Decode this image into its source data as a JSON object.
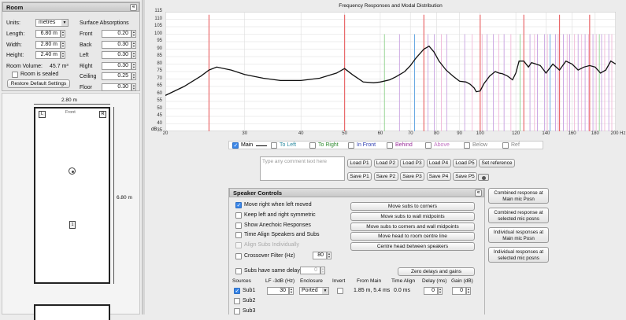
{
  "room": {
    "header": "Room",
    "units_label": "Units:",
    "units_value": "metres",
    "length_label": "Length:",
    "length_value": "6.80 m",
    "width_label": "Width:",
    "width_value": "2.80 m",
    "height_label": "Height:",
    "height_value": "2.40 m",
    "volume_label": "Room Volume:",
    "volume_value": "45.7 m³",
    "sealed_label": "Room is sealed",
    "restore_label": "Restore Default Settings",
    "absorptions_header": "Surface Absorptions",
    "absorptions": [
      {
        "label": "Front",
        "value": "0.20"
      },
      {
        "label": "Back",
        "value": "0.30"
      },
      {
        "label": "Left",
        "value": "0.30"
      },
      {
        "label": "Right",
        "value": "0.30"
      },
      {
        "label": "Ceiling",
        "value": "0.25"
      },
      {
        "label": "Floor",
        "value": "0.30"
      }
    ]
  },
  "plan": {
    "width_dim": "2.80 m",
    "length_dim": "6.80 m",
    "front_label": "Front",
    "left_marker": "L",
    "right_marker": "R",
    "sub_marker": "1"
  },
  "chart_data": {
    "type": "line",
    "title": "Frequency Responses and Modal Distribution",
    "x_scale": "log",
    "xlim": [
      20,
      200
    ],
    "x_ticks": [
      "20",
      "30",
      "40",
      "50",
      "60",
      "70",
      "80",
      "90",
      "100",
      "120",
      "140",
      "160",
      "180",
      "200 Hz"
    ],
    "ylim": [
      35,
      115
    ],
    "y_ticks": [
      "115",
      "110",
      "105",
      "100",
      "95",
      "90",
      "85",
      "80",
      "75",
      "70",
      "65",
      "60",
      "55",
      "50",
      "45",
      "40",
      "35"
    ],
    "y_unit": "dB",
    "grid": true,
    "series": [
      {
        "name": "Main",
        "x": [
          20,
          22,
          24,
          25,
          26,
          28,
          30,
          33,
          36,
          40,
          44,
          48,
          50,
          52,
          55,
          58,
          60,
          63,
          65,
          68,
          70,
          72,
          75,
          77,
          79,
          81,
          84,
          87,
          90,
          93,
          95,
          97,
          98,
          100,
          102,
          105,
          108,
          110,
          112,
          115,
          118,
          120,
          122,
          125,
          128,
          130,
          133,
          136,
          140,
          145,
          150,
          155,
          160,
          165,
          170,
          175,
          180,
          185,
          190,
          195,
          200
        ],
        "y": [
          59,
          65,
          72,
          76,
          78,
          76,
          73,
          70.5,
          69,
          69,
          70.5,
          74,
          77,
          73,
          68,
          67.5,
          68,
          69.5,
          71.5,
          75,
          79,
          84,
          90,
          92,
          88,
          82,
          76,
          72,
          68.5,
          68,
          66.5,
          64,
          61.5,
          62,
          67,
          72,
          75,
          74,
          73.5,
          72,
          69.5,
          74,
          82,
          82,
          78,
          81,
          80,
          79,
          74,
          80,
          76,
          82,
          80,
          76,
          78,
          79,
          78,
          74,
          76,
          82,
          80
        ]
      }
    ],
    "modes": {
      "axial": [
        25,
        50,
        75,
        100,
        125,
        150,
        175
      ],
      "width_axial": [
        61.3,
        122.6,
        183.9
      ],
      "height_axial": [
        71.5,
        143,
        214.5
      ],
      "tangential": [
        66.2,
        76.6,
        79.1,
        84.3,
        92.4,
        103.6,
        107,
        113,
        129,
        134,
        139,
        147,
        153,
        158,
        165,
        171,
        178,
        186,
        193
      ],
      "oblique": [
        82,
        96,
        101,
        110,
        117,
        132,
        141,
        149,
        156,
        162,
        168,
        174,
        181,
        189,
        196
      ]
    },
    "mode_colors": {
      "axial": "#e9686a",
      "width_axial": "#8ed18c",
      "height_axial": "#5aa0e0",
      "tangential": "#c8a0e0",
      "oblique": "#f0b8d8"
    },
    "legend": [
      {
        "name": "Main",
        "color": "#000000",
        "checked": true
      },
      {
        "name": "To Left",
        "color": "#2a8aa0",
        "checked": false
      },
      {
        "name": "To Right",
        "color": "#2e8a2e",
        "checked": false
      },
      {
        "name": "In Front",
        "color": "#2a3ab0",
        "checked": false
      },
      {
        "name": "Behind",
        "color": "#9a2e9a",
        "checked": false
      },
      {
        "name": "Above",
        "color": "#c070c0",
        "checked": false
      },
      {
        "name": "Below",
        "color": "#888888",
        "checked": false
      },
      {
        "name": "Ref",
        "color": "#888888",
        "checked": false
      }
    ]
  },
  "comment": {
    "placeholder": "Type any comment text here"
  },
  "presets": {
    "load": [
      "Load P1",
      "Load P2",
      "Load P3",
      "Load P4",
      "Load P5"
    ],
    "save": [
      "Save P1",
      "Save P2",
      "Save P3",
      "Save P4",
      "Save P5"
    ],
    "set_reference": "Set reference"
  },
  "speaker_controls": {
    "header": "Speaker Controls",
    "options": [
      {
        "label": "Move right when left moved",
        "checked": true,
        "disabled": false
      },
      {
        "label": "Keep left and right symmetric",
        "checked": false,
        "disabled": false
      },
      {
        "label": "Show Anechoic Responses",
        "checked": false,
        "disabled": false
      },
      {
        "label": "Time Align Speakers and Subs",
        "checked": false,
        "disabled": false
      },
      {
        "label": "Align Subs Individually",
        "checked": false,
        "disabled": true
      }
    ],
    "crossover_label": "Crossover Filter (Hz)",
    "crossover_value": "80",
    "same_delay_label": "Subs have same delay",
    "same_delay_value": "0",
    "actions": [
      "Move subs to corners",
      "Move subs to wall midpoints",
      "Move subs to corners and wall midpoints",
      "Move head to room centre line",
      "Centre head between speakers"
    ],
    "zero_delays": "Zero delays and gains",
    "columns": [
      "Sources",
      "LF -3dB (Hz)",
      "Enclosure",
      "Invert",
      "From Main",
      "Time Align",
      "Delay (ms)",
      "Gain (dB)"
    ],
    "sources": [
      {
        "name": "Sub1",
        "checked": true,
        "lf": "30",
        "enclosure": "Ported",
        "from_main": "1.85 m, 5.4 ms",
        "time_align": "0.0 ms",
        "delay": "0",
        "gain": "0"
      },
      {
        "name": "Sub2",
        "checked": false
      },
      {
        "name": "Sub3",
        "checked": false
      }
    ]
  },
  "side_buttons": [
    "Combined response at Main mic Posn",
    "Combined response at selected mic posns",
    "Individual responses at Main mic Posn",
    "Individual responses at selected mic posns"
  ]
}
